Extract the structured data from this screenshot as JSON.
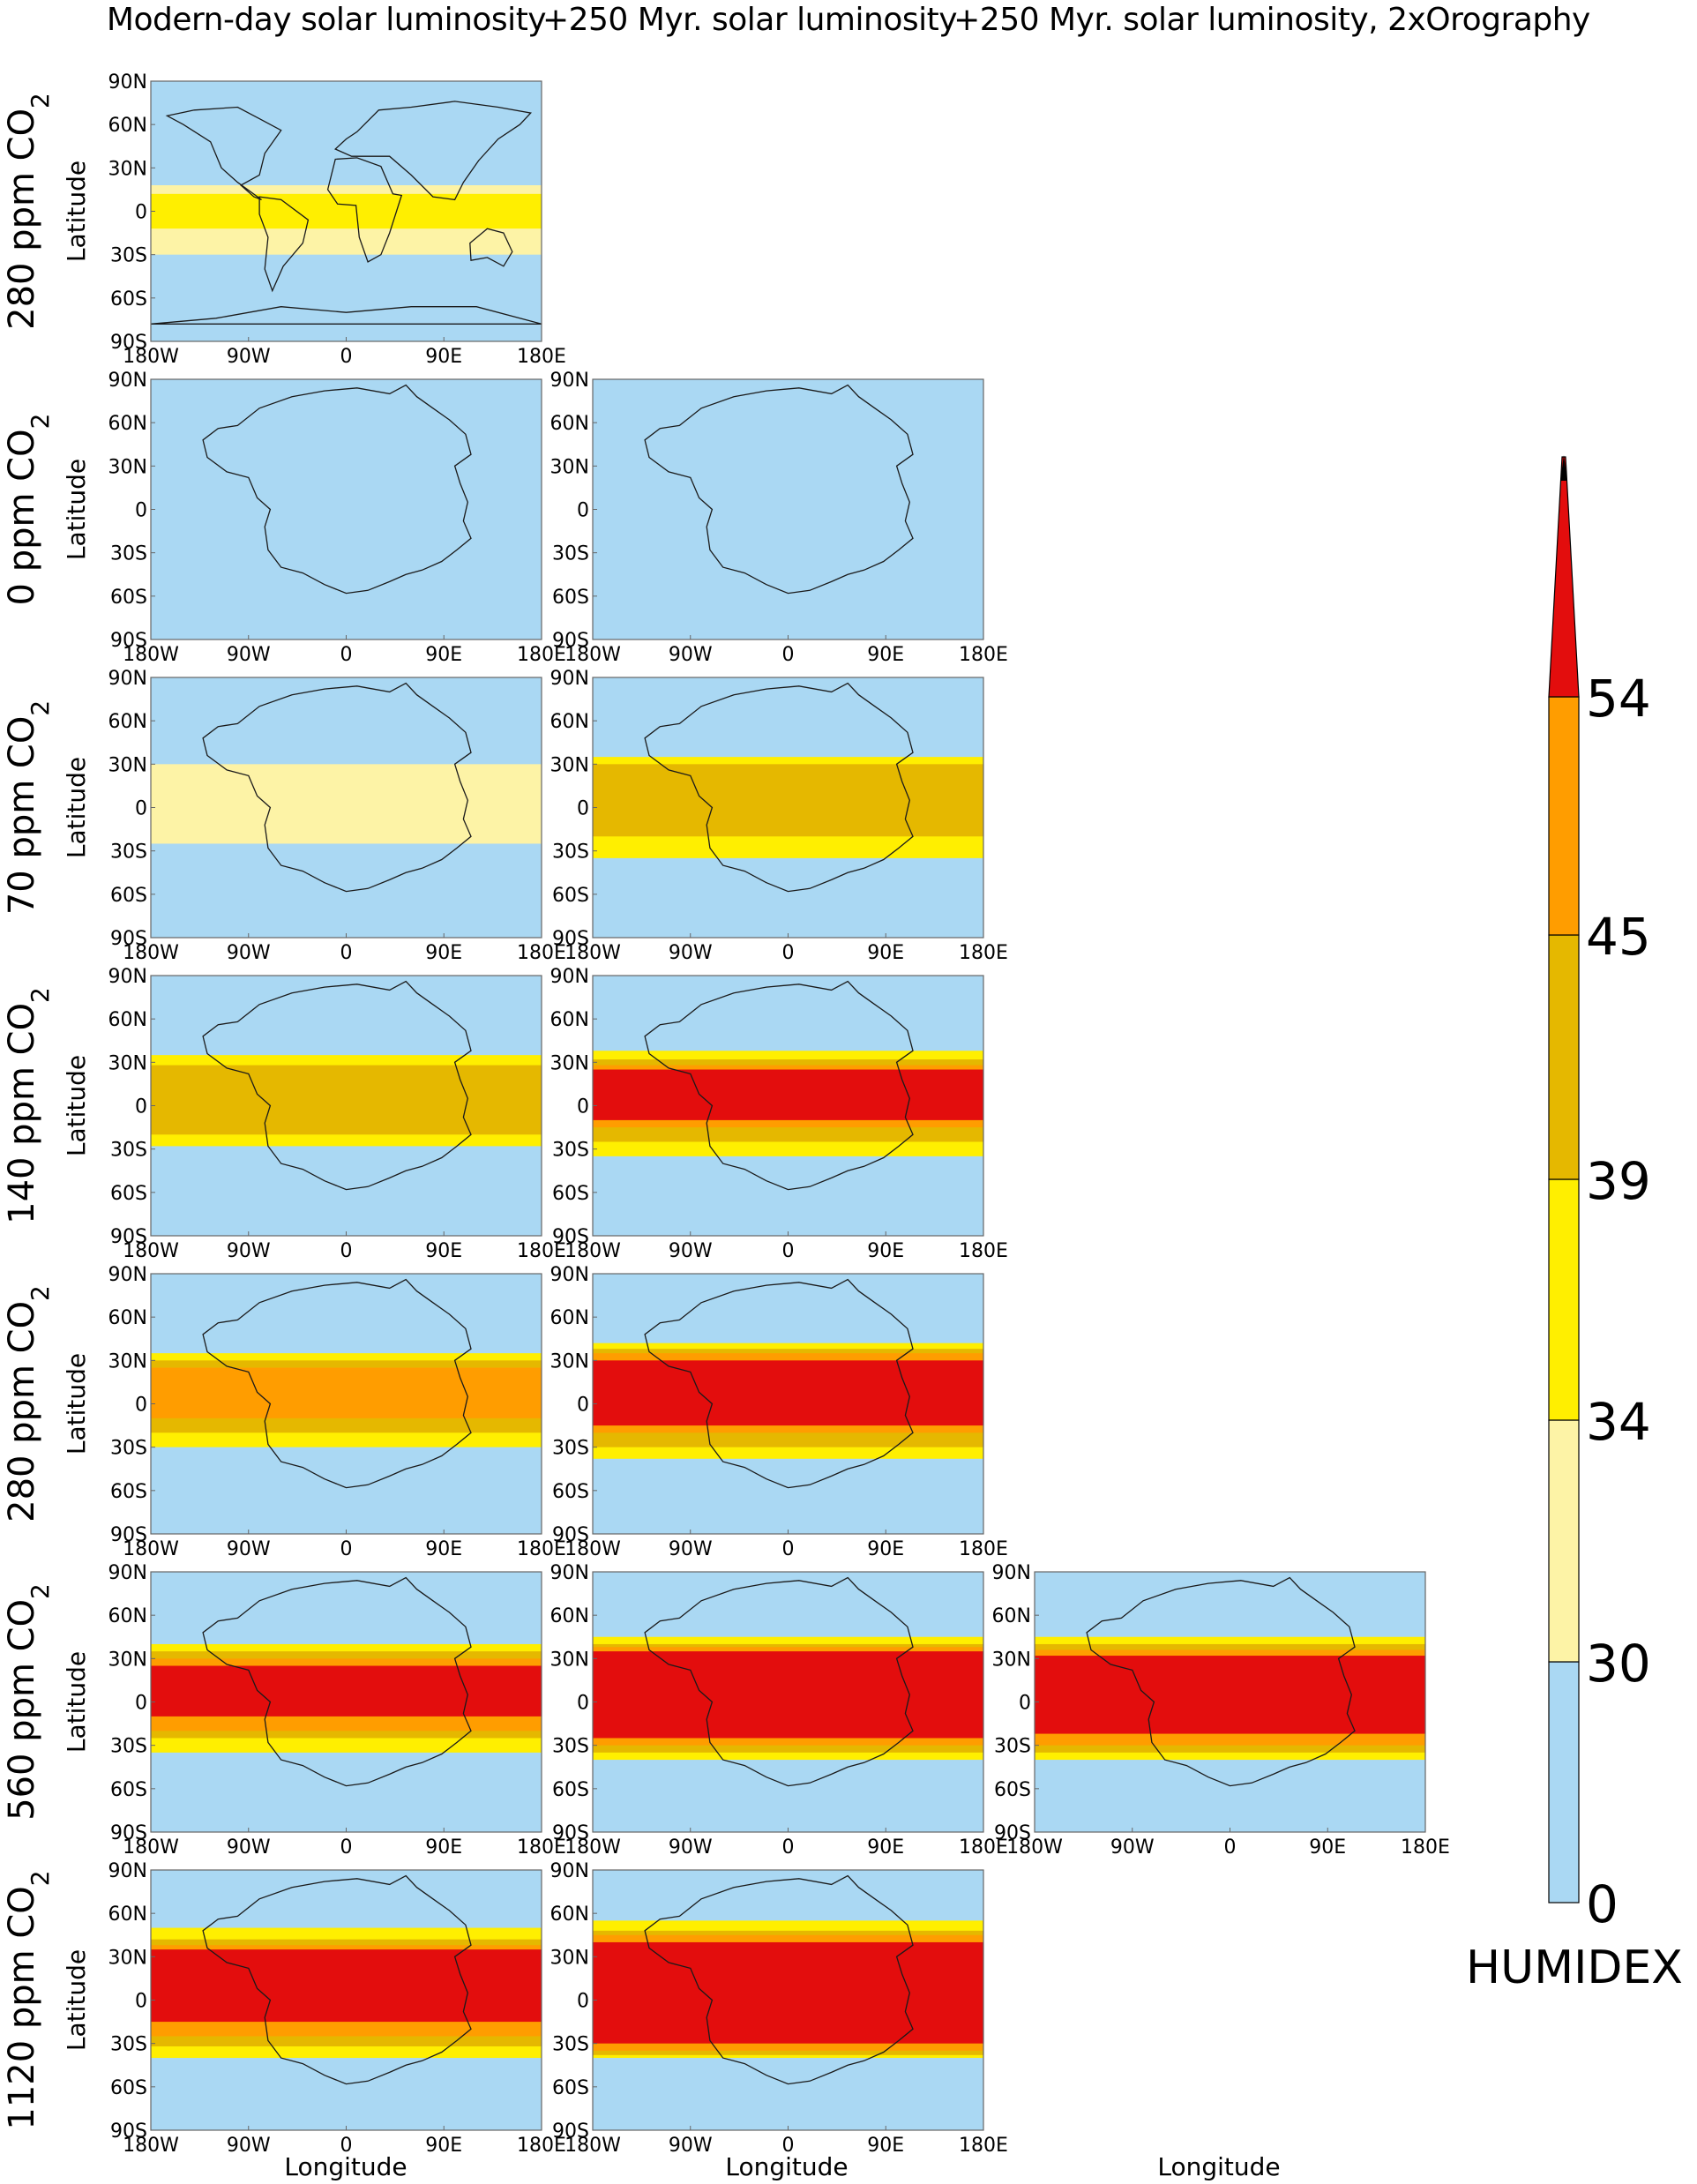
{
  "chart_data": {
    "type": "heatmap",
    "column_titles": [
      "Modern-day solar luminosity",
      "+250 Myr. solar luminosity",
      "+250 Myr. solar luminosity, 2xOrography"
    ],
    "row_labels": [
      "280 ppm CO2",
      "0 ppm CO2",
      "70 ppm CO2",
      "140 ppm CO2",
      "280 ppm CO2",
      "560 ppm CO2",
      "1120 ppm CO2"
    ],
    "panels_present": [
      [
        true,
        false,
        false
      ],
      [
        true,
        true,
        false
      ],
      [
        true,
        true,
        false
      ],
      [
        true,
        true,
        false
      ],
      [
        true,
        true,
        false
      ],
      [
        true,
        true,
        true
      ],
      [
        true,
        true,
        false
      ]
    ],
    "ylabel": "Latitude",
    "xlabel": "Longitude",
    "x_ticks": [
      "180W",
      "90W",
      "0",
      "90E",
      "180E"
    ],
    "y_ticks": [
      "90N",
      "60N",
      "30N",
      "0",
      "30S",
      "60S",
      "90S"
    ],
    "xlim": [
      -180,
      180
    ],
    "ylim": [
      -90,
      90
    ],
    "colorbar": {
      "title": "HUMIDEX",
      "levels": [
        0,
        30,
        34,
        39,
        45,
        54
      ],
      "tick_labels": [
        "0",
        "30",
        "34",
        "39",
        "45",
        "54"
      ],
      "colors": [
        "#aad8f3",
        "#fdf3a6",
        "#ffef00",
        "#e5b800",
        "#ff9d00",
        "#e30d0d"
      ],
      "extend": "max",
      "extend_color": "#000000"
    },
    "panel_levels": [
      [
        [
          -30,
          18,
          1
        ],
        [
          -12,
          12,
          2
        ]
      ],
      [],
      [
        [
          -25,
          30,
          1
        ],
        [
          -8,
          22,
          1
        ]
      ],
      [
        [
          -28,
          35,
          2
        ],
        [
          -20,
          28,
          3
        ]
      ],
      [
        [
          -30,
          35,
          2
        ],
        [
          -20,
          30,
          3
        ],
        [
          -10,
          25,
          4
        ]
      ],
      [
        [
          -35,
          40,
          2
        ],
        [
          -25,
          35,
          3
        ],
        [
          -20,
          30,
          4
        ],
        [
          -10,
          25,
          5
        ]
      ],
      [
        [
          -40,
          50,
          2
        ],
        [
          -32,
          42,
          3
        ],
        [
          -25,
          38,
          4
        ],
        [
          -15,
          35,
          5
        ]
      ]
    ],
    "panel_levels_col2": [
      [],
      [],
      [
        [
          -35,
          35,
          2
        ],
        [
          -20,
          30,
          3
        ]
      ],
      [
        [
          -35,
          38,
          2
        ],
        [
          -25,
          32,
          3
        ],
        [
          -15,
          28,
          4
        ],
        [
          -10,
          25,
          5
        ]
      ],
      [
        [
          -38,
          42,
          2
        ],
        [
          -30,
          38,
          3
        ],
        [
          -20,
          35,
          4
        ],
        [
          -15,
          30,
          5
        ]
      ],
      [
        [
          -40,
          45,
          2
        ],
        [
          -35,
          40,
          3
        ],
        [
          -30,
          38,
          4
        ],
        [
          -25,
          35,
          5
        ]
      ],
      [
        [
          -40,
          55,
          2
        ],
        [
          -38,
          48,
          3
        ],
        [
          -35,
          45,
          4
        ],
        [
          -30,
          40,
          5
        ]
      ]
    ],
    "panel_levels_col3": [
      [],
      [],
      [],
      [],
      [],
      [
        [
          -40,
          45,
          2
        ],
        [
          -35,
          40,
          3
        ],
        [
          -30,
          36,
          4
        ],
        [
          -22,
          32,
          5
        ]
      ],
      []
    ]
  }
}
